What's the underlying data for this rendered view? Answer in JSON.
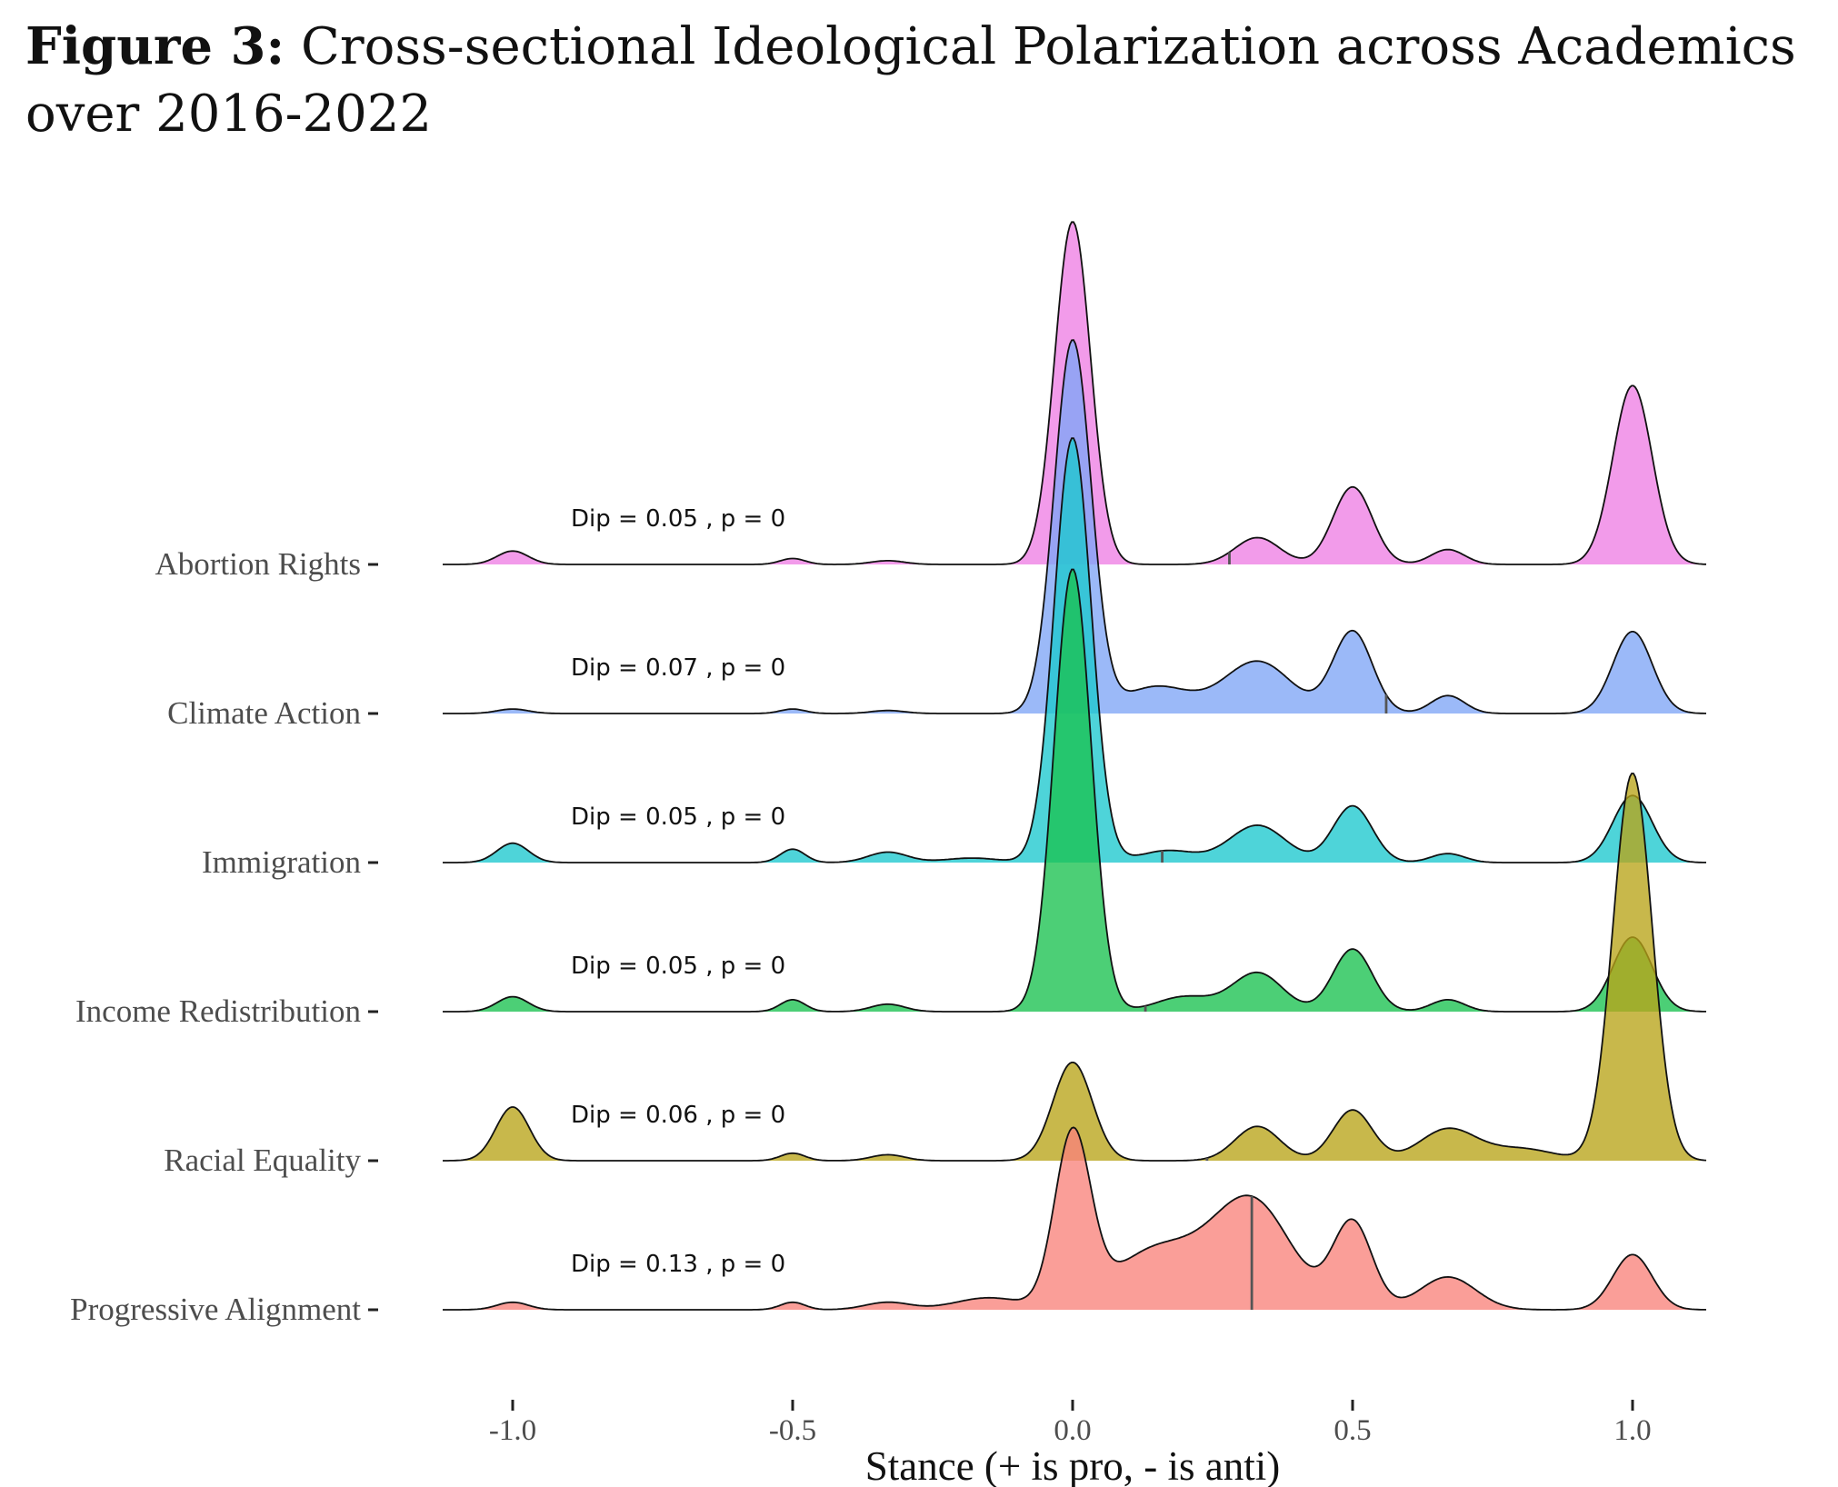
{
  "caption": {
    "label": "Figure 3:",
    "text": "Cross-sectional Ideological Polarization across Academics over 2016-2022"
  },
  "chart_data": {
    "type": "ridgeline",
    "xlabel": "Stance (+ is pro, - is anti)",
    "xlim": [
      -1.12,
      1.12
    ],
    "xticks": [
      -1.0,
      -0.5,
      0.0,
      0.5,
      1.0
    ],
    "xtick_labels": [
      "-1.0",
      "-0.5",
      "0.0",
      "0.5",
      "1.0"
    ],
    "series": [
      {
        "name": "Abortion Rights",
        "color": "#ee7fe4",
        "annotation": "Dip = 0.05 , p = 0",
        "mean": 0.28,
        "peaks": [
          [
            -1.0,
            0.09,
            0.028
          ],
          [
            -0.5,
            0.04,
            0.022
          ],
          [
            -0.33,
            0.025,
            0.03
          ],
          [
            0.0,
            2.3,
            0.032
          ],
          [
            0.33,
            0.18,
            0.04
          ],
          [
            0.5,
            0.52,
            0.035
          ],
          [
            0.67,
            0.1,
            0.03
          ],
          [
            1.0,
            1.2,
            0.035
          ]
        ]
      },
      {
        "name": "Climate Action",
        "color": "#7fa5f6",
        "annotation": "Dip = 0.07 , p = 0",
        "mean": 0.56,
        "peaks": [
          [
            -1.0,
            0.03,
            0.028
          ],
          [
            -0.5,
            0.03,
            0.022
          ],
          [
            -0.33,
            0.02,
            0.03
          ],
          [
            0.0,
            2.5,
            0.033
          ],
          [
            0.15,
            0.18,
            0.06
          ],
          [
            0.33,
            0.35,
            0.06
          ],
          [
            0.5,
            0.55,
            0.035
          ],
          [
            0.67,
            0.12,
            0.03
          ],
          [
            1.0,
            0.55,
            0.035
          ]
        ]
      },
      {
        "name": "Immigration",
        "color": "#1cc8ce",
        "annotation": "Dip = 0.05 , p = 0",
        "mean": 0.16,
        "peaks": [
          [
            -1.0,
            0.13,
            0.028
          ],
          [
            -0.5,
            0.09,
            0.022
          ],
          [
            -0.33,
            0.07,
            0.035
          ],
          [
            -0.18,
            0.03,
            0.05
          ],
          [
            0.0,
            2.85,
            0.033
          ],
          [
            0.17,
            0.08,
            0.05
          ],
          [
            0.33,
            0.25,
            0.05
          ],
          [
            0.5,
            0.38,
            0.035
          ],
          [
            0.67,
            0.06,
            0.03
          ],
          [
            1.0,
            0.45,
            0.035
          ]
        ]
      },
      {
        "name": "Income Redistribution",
        "color": "#19c14f",
        "annotation": "Dip = 0.05 , p = 0",
        "mean": 0.13,
        "peaks": [
          [
            -1.0,
            0.1,
            0.028
          ],
          [
            -0.5,
            0.08,
            0.022
          ],
          [
            -0.33,
            0.05,
            0.03
          ],
          [
            0.0,
            2.97,
            0.033
          ],
          [
            0.2,
            0.1,
            0.05
          ],
          [
            0.33,
            0.26,
            0.045
          ],
          [
            0.5,
            0.42,
            0.035
          ],
          [
            0.67,
            0.08,
            0.03
          ],
          [
            1.0,
            0.5,
            0.035
          ]
        ]
      },
      {
        "name": "Racial Equality",
        "color": "#b8a418",
        "annotation": "Dip = 0.06 , p = 0",
        "mean": 0.24,
        "peaks": [
          [
            -1.0,
            0.36,
            0.03
          ],
          [
            -0.5,
            0.05,
            0.022
          ],
          [
            -0.33,
            0.04,
            0.03
          ],
          [
            0.0,
            0.66,
            0.035
          ],
          [
            0.33,
            0.23,
            0.04
          ],
          [
            0.5,
            0.34,
            0.035
          ],
          [
            0.67,
            0.21,
            0.05
          ],
          [
            0.8,
            0.08,
            0.06
          ],
          [
            1.0,
            2.6,
            0.035
          ]
        ]
      },
      {
        "name": "Progressive Alignment",
        "color": "#f8837b",
        "annotation": "Dip = 0.13 , p = 0",
        "mean": 0.32,
        "peaks": [
          [
            -1.0,
            0.05,
            0.028
          ],
          [
            -0.5,
            0.05,
            0.022
          ],
          [
            -0.33,
            0.05,
            0.04
          ],
          [
            -0.15,
            0.08,
            0.06
          ],
          [
            0.0,
            1.15,
            0.032
          ],
          [
            0.15,
            0.4,
            0.08
          ],
          [
            0.32,
            0.72,
            0.07
          ],
          [
            0.5,
            0.58,
            0.035
          ],
          [
            0.67,
            0.22,
            0.05
          ],
          [
            1.0,
            0.37,
            0.035
          ]
        ]
      }
    ]
  }
}
